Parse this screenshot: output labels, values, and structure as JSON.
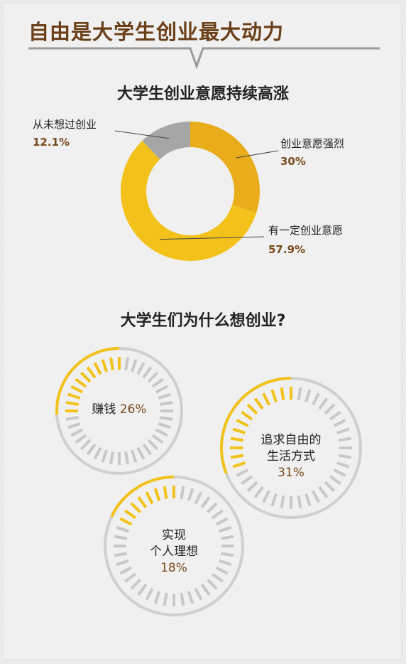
{
  "title": "自由是大学生创业最大动力",
  "colors": {
    "title": "#6b3f18",
    "percent": "#7a4a1c",
    "gold_dark": "#e9ad1c",
    "gold": "#f2c21b",
    "gold_light": "#f6d02c",
    "gray": "#a6a6a6",
    "gauge_gray": "#c8c8c8"
  },
  "section1": {
    "title": "大学生创业意愿持续高涨",
    "chart_data": {
      "type": "pie",
      "title": "大学生创业意愿持续高涨",
      "slices": [
        {
          "label": "创业意愿强烈",
          "value": 30,
          "display": "30%",
          "color": "#e9ad1c"
        },
        {
          "label": "有一定创业意愿",
          "value": 57.9,
          "display": "57.9%",
          "color": "#f2c21b"
        },
        {
          "label": "从未想过创业",
          "value": 12.1,
          "display": "12.1%",
          "color": "#a6a6a6"
        }
      ]
    }
  },
  "section2": {
    "title": "大学生们为什么想创业?",
    "chart_data": {
      "type": "gauge",
      "title": "大学生们为什么想创业?",
      "items": [
        {
          "label": "赚钱",
          "label_lines": [
            "赚钱"
          ],
          "value": 26,
          "display": "26%"
        },
        {
          "label": "追求自由的生活方式",
          "label_lines": [
            "追求自由的",
            "生活方式"
          ],
          "value": 31,
          "display": "31%"
        },
        {
          "label": "实现个人理想",
          "label_lines": [
            "实现",
            "个人理想"
          ],
          "value": 18,
          "display": "18%"
        }
      ]
    }
  }
}
